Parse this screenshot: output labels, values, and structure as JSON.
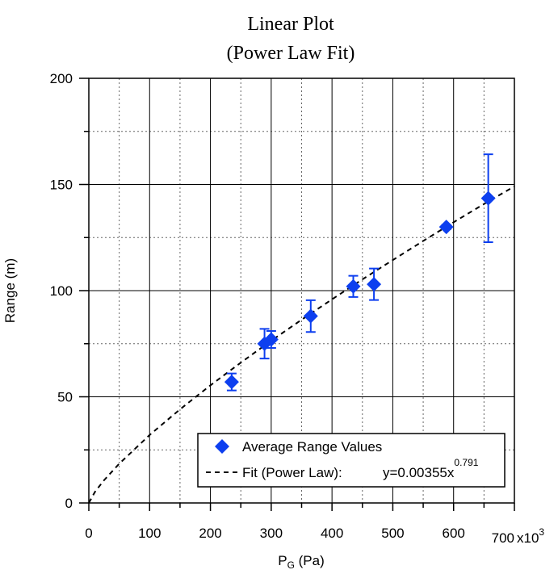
{
  "chart_data": {
    "type": "scatter",
    "title": [
      "Linear Plot",
      "(Power Law Fit)"
    ],
    "xlabel": {
      "main": "P",
      "sub": "G",
      "rest": " (Pa)"
    },
    "ylabel": "Range (m)",
    "x_multiplier": {
      "base": "x10",
      "exp": "3"
    },
    "xlim": [
      0,
      700
    ],
    "ylim": [
      0,
      200
    ],
    "xticks": [
      0,
      100,
      200,
      300,
      400,
      500,
      600,
      700
    ],
    "xminor": [
      50,
      150,
      250,
      350,
      450,
      550,
      650
    ],
    "yticks": [
      0,
      50,
      100,
      150,
      200
    ],
    "yminor": [
      25,
      75,
      125,
      175
    ],
    "grid": true,
    "series": [
      {
        "name": "Average Range Values",
        "color": "#0d3fef",
        "x": [
          235,
          289,
          300,
          365,
          435,
          469,
          588,
          657
        ],
        "values": [
          57,
          75,
          77,
          88,
          102,
          103,
          130,
          143.5
        ],
        "errors": [
          4,
          7,
          4,
          7.5,
          5,
          7.4,
          1,
          20.7
        ]
      },
      {
        "name": "Fit (Power Law):",
        "equation": "y=0.00355x",
        "exponent": "0.791",
        "color": "#000000",
        "x": [
          0,
          10,
          25,
          50,
          100,
          150,
          200,
          250,
          300,
          350,
          400,
          450,
          500,
          550,
          600,
          650,
          700
        ],
        "values": [
          0,
          5.18,
          10.7,
          18.47,
          32.0,
          44.1,
          55.4,
          66.1,
          76.4,
          86.3,
          95.9,
          105.3,
          114.4,
          123.4,
          132.2,
          140.8,
          149.1
        ]
      }
    ]
  }
}
